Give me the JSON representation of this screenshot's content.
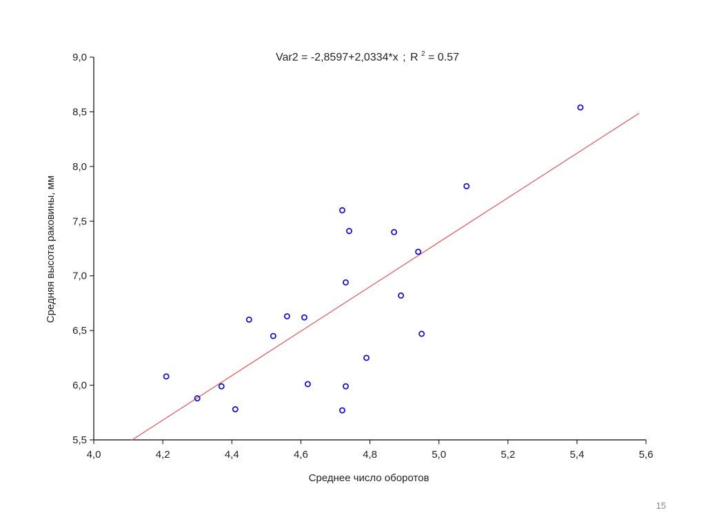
{
  "slide": {
    "page_number": "15"
  },
  "colors": {
    "axis": "#000000",
    "point": "#1515c8",
    "regression_line": "#e06060",
    "text": "#222222"
  },
  "chart_data": {
    "type": "scatter",
    "title": {
      "prefix": "Var2 = -2,8597+2,0334*x",
      "separator": ";",
      "r_label": "R",
      "r_exp": "2",
      "r_value": "= 0.57"
    },
    "xlabel": "Среднее число оборотов",
    "ylabel": "Средняя высота раковины, мм",
    "xlim": [
      4.0,
      5.6
    ],
    "ylim": [
      5.5,
      9.0
    ],
    "x_ticks": [
      4.0,
      4.2,
      4.4,
      4.6,
      4.8,
      5.0,
      5.2,
      5.4,
      5.6
    ],
    "x_tick_labels": [
      "4,0",
      "4,2",
      "4,4",
      "4,6",
      "4,8",
      "5,0",
      "5,2",
      "5,4",
      "5,6"
    ],
    "y_ticks": [
      5.5,
      6.0,
      6.5,
      7.0,
      7.5,
      8.0,
      8.5,
      9.0
    ],
    "y_tick_labels": [
      "5,5",
      "6,0",
      "6,5",
      "7,0",
      "7,5",
      "8,0",
      "8,5",
      "9,0"
    ],
    "grid": false,
    "regression": {
      "intercept": -2.8597,
      "slope": 2.0334,
      "x_range": [
        4.11,
        5.58
      ]
    },
    "points": [
      {
        "x": 4.21,
        "y": 6.08
      },
      {
        "x": 4.3,
        "y": 5.88
      },
      {
        "x": 4.37,
        "y": 5.99
      },
      {
        "x": 4.41,
        "y": 5.78
      },
      {
        "x": 4.45,
        "y": 6.6
      },
      {
        "x": 4.52,
        "y": 6.45
      },
      {
        "x": 4.56,
        "y": 6.63
      },
      {
        "x": 4.61,
        "y": 6.62
      },
      {
        "x": 4.62,
        "y": 6.01
      },
      {
        "x": 4.72,
        "y": 7.6
      },
      {
        "x": 4.72,
        "y": 5.77
      },
      {
        "x": 4.73,
        "y": 6.94
      },
      {
        "x": 4.73,
        "y": 5.99
      },
      {
        "x": 4.74,
        "y": 7.41
      },
      {
        "x": 4.79,
        "y": 6.25
      },
      {
        "x": 4.87,
        "y": 7.4
      },
      {
        "x": 4.89,
        "y": 6.82
      },
      {
        "x": 4.94,
        "y": 7.22
      },
      {
        "x": 4.95,
        "y": 6.47
      },
      {
        "x": 5.08,
        "y": 7.82
      },
      {
        "x": 5.41,
        "y": 8.54
      }
    ]
  }
}
